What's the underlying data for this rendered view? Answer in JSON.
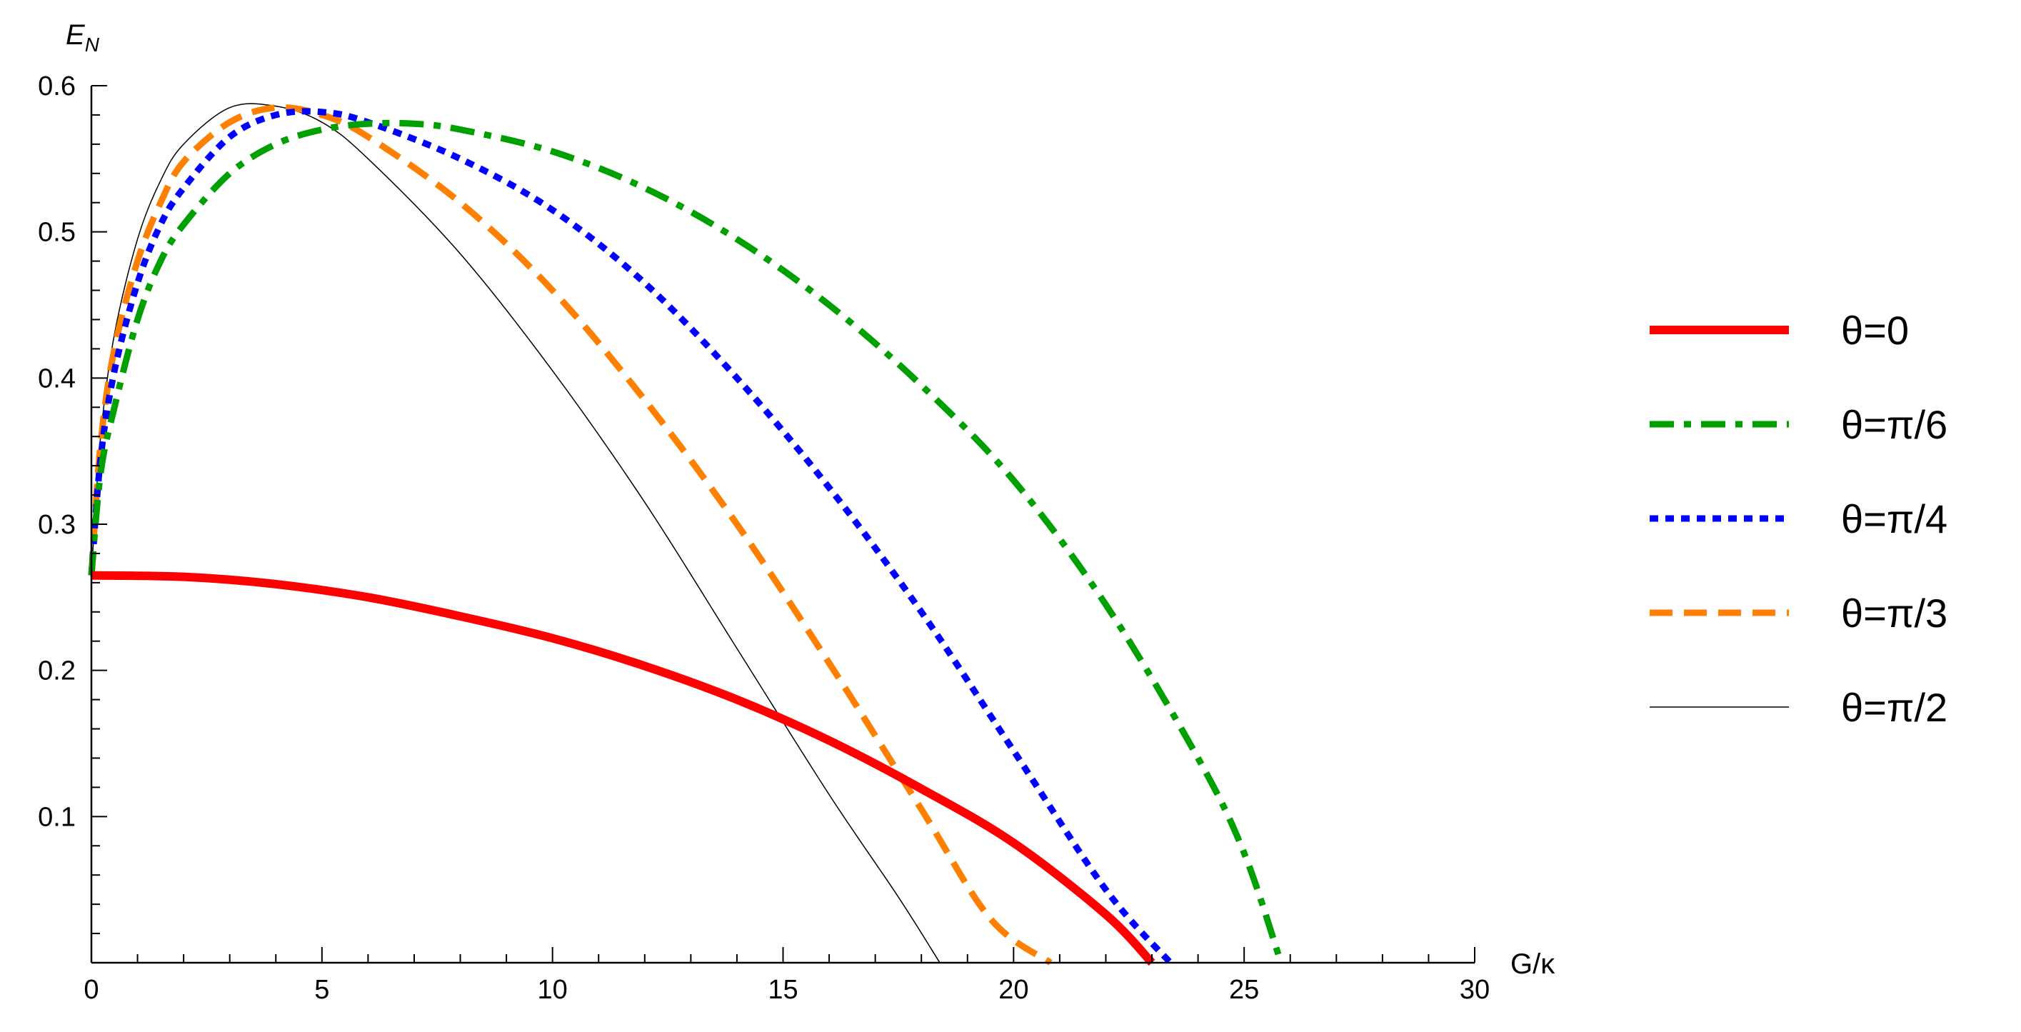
{
  "chart_data": {
    "type": "line",
    "xlabel": "G/κ",
    "ylabel_main": "E",
    "ylabel_sub": "N",
    "xlim": [
      0,
      30
    ],
    "ylim": [
      0,
      0.6
    ],
    "x_ticks": [
      0,
      5,
      10,
      15,
      20,
      25,
      30
    ],
    "x_tick_labels": [
      "0",
      "5",
      "10",
      "15",
      "20",
      "25",
      "30"
    ],
    "y_ticks": [
      0.1,
      0.2,
      0.3,
      0.4,
      0.5,
      0.6
    ],
    "y_tick_labels": [
      "0.1",
      "0.2",
      "0.3",
      "0.4",
      "0.5",
      "0.6"
    ],
    "grid": false,
    "legend_position": "right",
    "series": [
      {
        "name": "θ=0",
        "color": "#ff0000",
        "style": "solid-thick",
        "points": [
          [
            0,
            0.265
          ],
          [
            2,
            0.264
          ],
          [
            4,
            0.259
          ],
          [
            6,
            0.25
          ],
          [
            8,
            0.237
          ],
          [
            10,
            0.222
          ],
          [
            12,
            0.203
          ],
          [
            14,
            0.18
          ],
          [
            16,
            0.152
          ],
          [
            18,
            0.119
          ],
          [
            20,
            0.082
          ],
          [
            22,
            0.033
          ],
          [
            23,
            0.0
          ]
        ]
      },
      {
        "name": "θ=π/6",
        "color": "#00a000",
        "style": "dashdot",
        "points": [
          [
            0,
            0.265
          ],
          [
            0.2,
            0.335
          ],
          [
            0.5,
            0.38
          ],
          [
            1,
            0.44
          ],
          [
            1.5,
            0.48
          ],
          [
            2,
            0.505
          ],
          [
            3,
            0.54
          ],
          [
            4,
            0.56
          ],
          [
            5,
            0.57
          ],
          [
            6,
            0.574
          ],
          [
            7,
            0.574
          ],
          [
            8,
            0.57
          ],
          [
            10,
            0.555
          ],
          [
            12,
            0.53
          ],
          [
            14,
            0.495
          ],
          [
            16,
            0.45
          ],
          [
            18,
            0.395
          ],
          [
            20,
            0.33
          ],
          [
            22,
            0.245
          ],
          [
            24,
            0.14
          ],
          [
            25,
            0.075
          ],
          [
            25.8,
            0.0
          ]
        ]
      },
      {
        "name": "θ=π/4",
        "color": "#0000ff",
        "style": "dotted",
        "points": [
          [
            0,
            0.265
          ],
          [
            0.2,
            0.345
          ],
          [
            0.5,
            0.405
          ],
          [
            1,
            0.465
          ],
          [
            1.5,
            0.505
          ],
          [
            2,
            0.53
          ],
          [
            3,
            0.565
          ],
          [
            4,
            0.58
          ],
          [
            5,
            0.582
          ],
          [
            6,
            0.575
          ],
          [
            8,
            0.55
          ],
          [
            10,
            0.515
          ],
          [
            12,
            0.465
          ],
          [
            14,
            0.4
          ],
          [
            16,
            0.325
          ],
          [
            18,
            0.24
          ],
          [
            20,
            0.145
          ],
          [
            22,
            0.05
          ],
          [
            23.4,
            0.0
          ]
        ]
      },
      {
        "name": "θ=π/3",
        "color": "#ff8000",
        "style": "dashed",
        "points": [
          [
            0,
            0.265
          ],
          [
            0.2,
            0.355
          ],
          [
            0.5,
            0.42
          ],
          [
            1,
            0.48
          ],
          [
            1.5,
            0.52
          ],
          [
            2,
            0.548
          ],
          [
            3,
            0.575
          ],
          [
            4,
            0.585
          ],
          [
            5,
            0.58
          ],
          [
            6,
            0.565
          ],
          [
            8,
            0.52
          ],
          [
            10,
            0.46
          ],
          [
            12,
            0.385
          ],
          [
            14,
            0.3
          ],
          [
            16,
            0.205
          ],
          [
            18,
            0.105
          ],
          [
            19.5,
            0.03
          ],
          [
            20.8,
            0.0
          ]
        ]
      },
      {
        "name": "θ=π/2",
        "color": "#000000",
        "style": "thin",
        "points": [
          [
            0,
            0.265
          ],
          [
            0.2,
            0.36
          ],
          [
            0.5,
            0.43
          ],
          [
            1,
            0.495
          ],
          [
            1.5,
            0.535
          ],
          [
            2,
            0.56
          ],
          [
            3,
            0.585
          ],
          [
            4,
            0.586
          ],
          [
            5,
            0.575
          ],
          [
            6,
            0.55
          ],
          [
            8,
            0.485
          ],
          [
            10,
            0.405
          ],
          [
            12,
            0.315
          ],
          [
            14,
            0.215
          ],
          [
            16,
            0.115
          ],
          [
            17.5,
            0.045
          ],
          [
            18.4,
            0.0
          ]
        ]
      }
    ]
  }
}
